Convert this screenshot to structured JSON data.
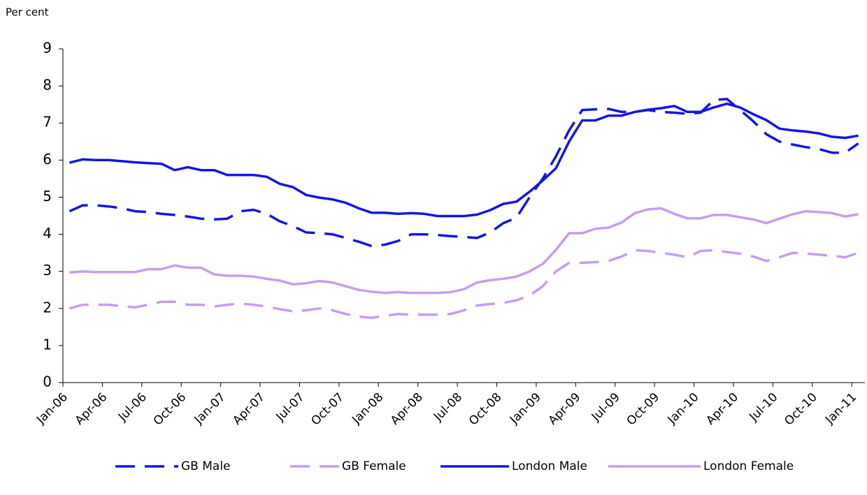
{
  "chart_data": {
    "type": "line",
    "y_axis_label": "Per cent",
    "categories": [
      "Jan-06",
      null,
      null,
      "Apr-06",
      null,
      null,
      "Jul-06",
      null,
      null,
      "Oct-06",
      null,
      null,
      "Jan-07",
      null,
      null,
      "Apr-07",
      null,
      null,
      "Jul-07",
      null,
      null,
      "Oct-07",
      null,
      null,
      "Jan-08",
      null,
      null,
      "Apr-08",
      null,
      null,
      "Jul-08",
      null,
      null,
      "Oct-08",
      null,
      null,
      "Jan-09",
      null,
      null,
      "Apr-09",
      null,
      null,
      "Jul-09",
      null,
      null,
      "Oct-09",
      null,
      null,
      "Jan-10",
      null,
      null,
      "Apr-10",
      null,
      null,
      "Jul-10",
      null,
      null,
      "Oct-10",
      null,
      null,
      "Jan-11"
    ],
    "ylim": [
      0,
      9
    ],
    "yticks": [
      0,
      1,
      2,
      3,
      4,
      5,
      6,
      7,
      8,
      9
    ],
    "grid": false,
    "legend": "bottom",
    "series": [
      {
        "name": "GB Male",
        "color": "#1414e6",
        "line_style": "dashed",
        "values": [
          4.62,
          4.78,
          4.78,
          4.75,
          4.7,
          4.62,
          4.6,
          4.55,
          4.52,
          4.48,
          4.42,
          4.4,
          4.42,
          4.62,
          4.66,
          4.55,
          4.35,
          4.22,
          4.05,
          4.03,
          4.0,
          3.9,
          3.8,
          3.68,
          3.72,
          3.82,
          4.0,
          4.0,
          3.98,
          3.95,
          3.93,
          3.9,
          4.05,
          4.3,
          4.45,
          5.0,
          5.5,
          6.1,
          6.8,
          7.35,
          7.37,
          7.38,
          7.3,
          7.3,
          7.35,
          7.3,
          7.28,
          7.25,
          7.28,
          7.62,
          7.65,
          7.35,
          7.05,
          6.7,
          6.5,
          6.42,
          6.35,
          6.3,
          6.2,
          6.2,
          6.45
        ]
      },
      {
        "name": "GB Female",
        "color": "#c79cf0",
        "line_style": "dashed",
        "values": [
          2.0,
          2.1,
          2.1,
          2.1,
          2.06,
          2.03,
          2.1,
          2.18,
          2.18,
          2.1,
          2.1,
          2.05,
          2.1,
          2.13,
          2.1,
          2.05,
          1.98,
          1.92,
          1.95,
          2.0,
          1.95,
          1.85,
          1.78,
          1.75,
          1.8,
          1.85,
          1.83,
          1.83,
          1.83,
          1.85,
          1.95,
          2.08,
          2.12,
          2.15,
          2.22,
          2.35,
          2.6,
          3.0,
          3.23,
          3.23,
          3.25,
          3.28,
          3.4,
          3.57,
          3.55,
          3.5,
          3.45,
          3.38,
          3.55,
          3.57,
          3.52,
          3.48,
          3.4,
          3.28,
          3.38,
          3.5,
          3.48,
          3.45,
          3.42,
          3.38,
          3.5
        ]
      },
      {
        "name": "London Male",
        "color": "#1414e6",
        "line_style": "solid",
        "values": [
          5.93,
          6.02,
          6.0,
          6.0,
          5.97,
          5.94,
          5.92,
          5.9,
          5.73,
          5.81,
          5.73,
          5.73,
          5.6,
          5.6,
          5.6,
          5.55,
          5.36,
          5.27,
          5.06,
          4.99,
          4.94,
          4.85,
          4.7,
          4.58,
          4.58,
          4.55,
          4.57,
          4.55,
          4.49,
          4.49,
          4.49,
          4.53,
          4.65,
          4.82,
          4.88,
          5.15,
          5.45,
          5.78,
          6.5,
          7.07,
          7.07,
          7.2,
          7.2,
          7.3,
          7.36,
          7.4,
          7.46,
          7.3,
          7.3,
          7.42,
          7.52,
          7.42,
          7.24,
          7.08,
          6.85,
          6.8,
          6.77,
          6.72,
          6.63,
          6.6,
          6.66
        ]
      },
      {
        "name": "London Female",
        "color": "#c79cf0",
        "line_style": "solid",
        "values": [
          2.97,
          3.0,
          2.98,
          2.98,
          2.98,
          2.98,
          3.06,
          3.06,
          3.16,
          3.1,
          3.1,
          2.92,
          2.88,
          2.88,
          2.86,
          2.8,
          2.75,
          2.65,
          2.68,
          2.74,
          2.7,
          2.6,
          2.5,
          2.45,
          2.42,
          2.44,
          2.42,
          2.42,
          2.42,
          2.44,
          2.52,
          2.7,
          2.76,
          2.8,
          2.86,
          3.0,
          3.2,
          3.58,
          4.03,
          4.03,
          4.15,
          4.18,
          4.32,
          4.57,
          4.67,
          4.7,
          4.55,
          4.43,
          4.43,
          4.52,
          4.52,
          4.46,
          4.4,
          4.3,
          4.42,
          4.54,
          4.62,
          4.6,
          4.57,
          4.48,
          4.54
        ]
      }
    ]
  }
}
